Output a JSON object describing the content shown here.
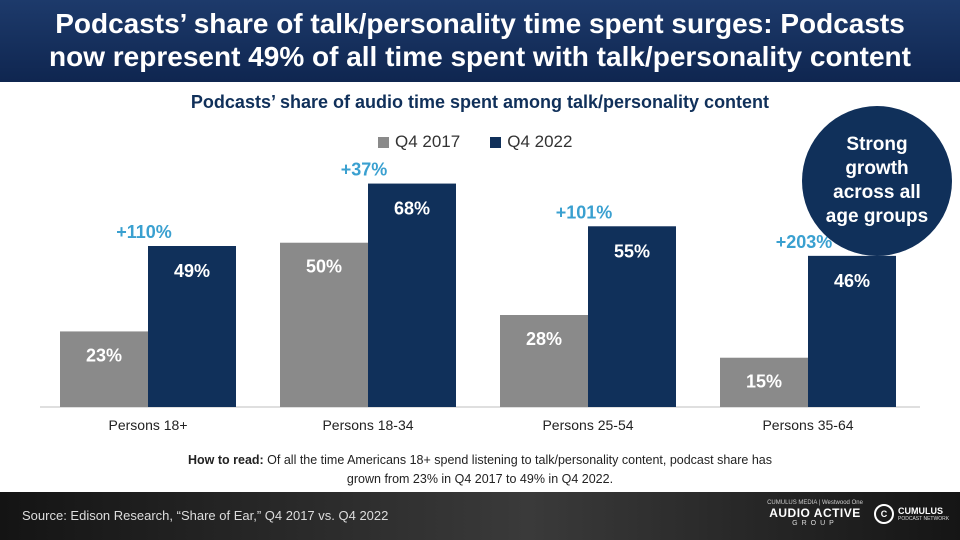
{
  "header": {
    "line1": "Podcasts’ share of talk/personality time spent surges: Podcasts",
    "line2": "now represent 49% of all time spent with talk/personality content"
  },
  "badge_text": "Strong growth across all age groups",
  "note": {
    "lead": "How to read:",
    "line1": " Of all the time Americans 18+ spend listening to talk/personality content, podcast share has",
    "line2": "grown from 23% in Q4 2017 to 49% in Q4 2022."
  },
  "footer": {
    "source": "Source: Edison Research, “Share of Ear,” Q4 2017 vs. Q4 2022",
    "logo1_top": "CUMULUS MEDIA | Westwood One",
    "logo1_main": "AUDIO ACTIVE",
    "logo1_sub": "GROUP",
    "logo2_icon": "C",
    "logo2_main": "CUMULUS",
    "logo2_sub": "PODCAST NETWORK"
  },
  "chart_data": {
    "type": "bar",
    "title": "Podcasts’ share of audio time spent among talk/personality content",
    "categories": [
      "Persons 18+",
      "Persons 18-34",
      "Persons 25-54",
      "Persons 35-64"
    ],
    "series": [
      {
        "name": "Q4 2017",
        "values": [
          23,
          50,
          28,
          15
        ],
        "color": "#8a8a8a"
      },
      {
        "name": "Q4 2022",
        "values": [
          49,
          68,
          55,
          46
        ],
        "color": "#10305a"
      }
    ],
    "growth_labels": [
      "+110%",
      "+37%",
      "+101%",
      "+203%"
    ],
    "growth_color": "#3aa0d0",
    "value_suffix": "%",
    "ylim": [
      0,
      70
    ],
    "grid": false,
    "legend_position": "top"
  }
}
